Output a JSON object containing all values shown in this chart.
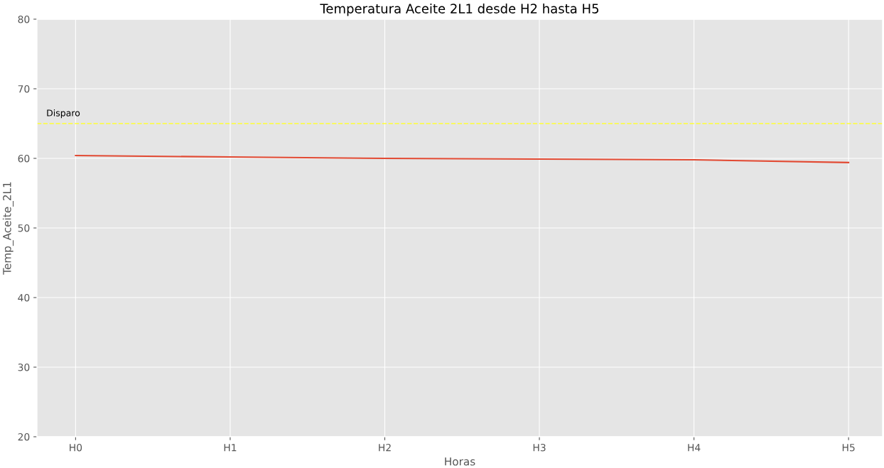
{
  "chart_data": {
    "type": "line",
    "title": "Temperatura Aceite 2L1 desde H2 hasta H5",
    "xlabel": "Horas",
    "ylabel": "Temp_Aceite_2L1",
    "categories": [
      "H0",
      "H1",
      "H2",
      "H3",
      "H4",
      "H5"
    ],
    "series": [
      {
        "color": "#e24a33",
        "values": [
          60.4,
          60.2,
          60.0,
          59.9,
          59.8,
          59.4
        ]
      }
    ],
    "ylim": [
      20,
      80
    ],
    "yticks": [
      20,
      30,
      40,
      50,
      60,
      70,
      80
    ],
    "grid": true,
    "ref_lines": [
      {
        "axis": "y",
        "value": 65,
        "label": "Disparo",
        "color": "#ffff33",
        "line_style": "dashed"
      }
    ]
  }
}
